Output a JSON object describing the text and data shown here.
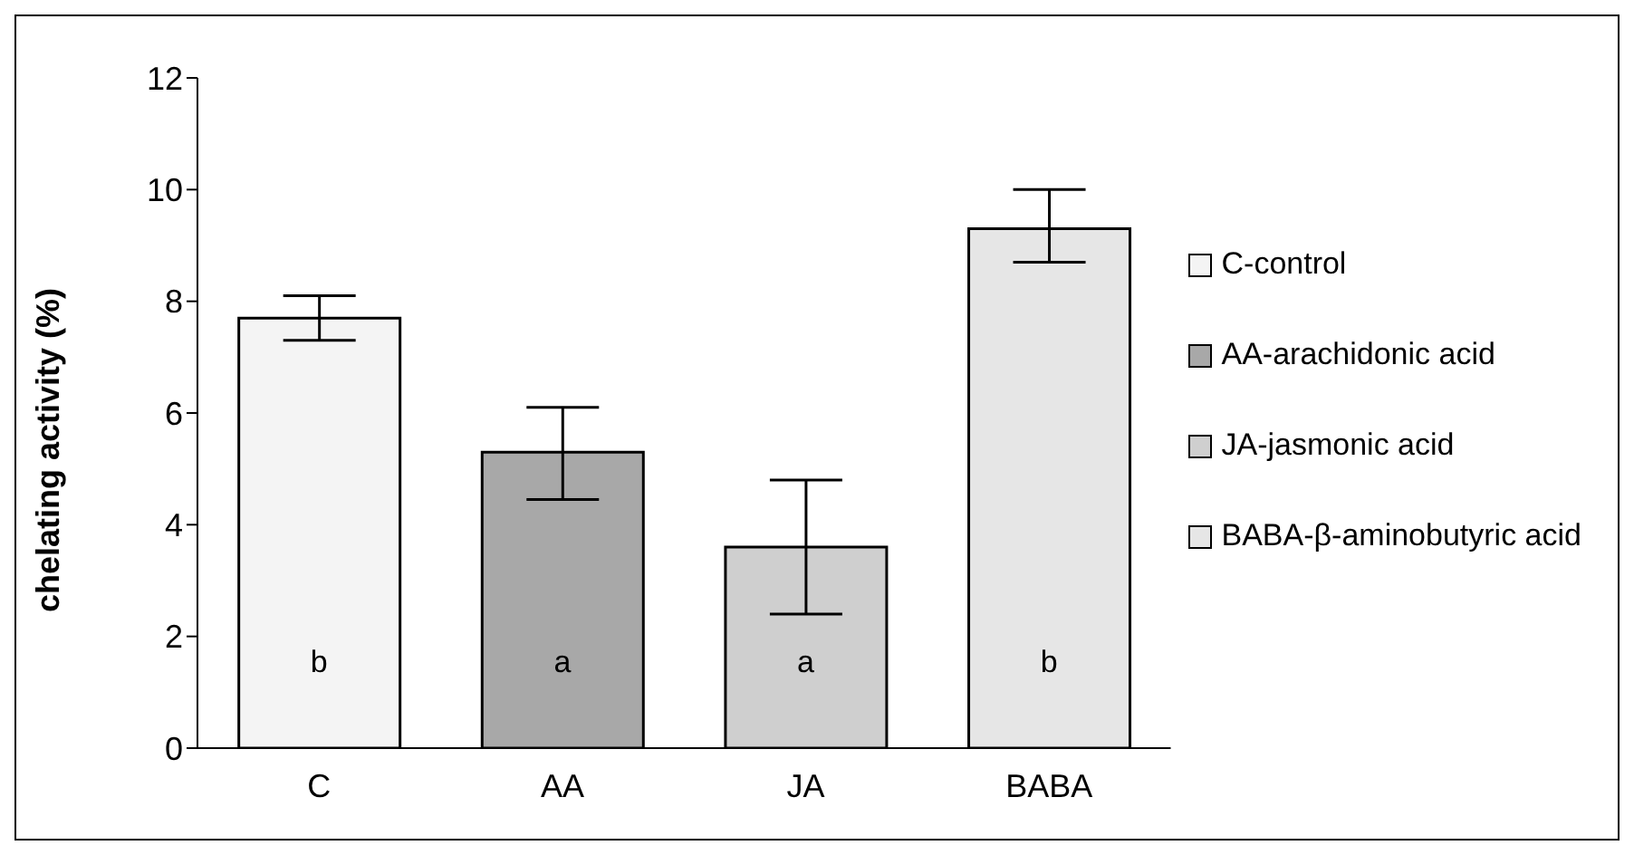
{
  "chart_data": {
    "type": "bar",
    "ylabel": "chelating activity (%)",
    "categories": [
      "C",
      "AA",
      "JA",
      "BABA"
    ],
    "stacked": true,
    "series": [
      {
        "name": "C-control",
        "color": "#f4f4f4",
        "values": [
          7.7,
          null,
          null,
          null
        ],
        "errors": [
          [
            7.3,
            8.1
          ],
          null,
          null,
          null
        ]
      },
      {
        "name": "AA-arachidonic acid",
        "color": "#a8a8a8",
        "values": [
          null,
          5.3,
          null,
          null
        ],
        "errors": [
          null,
          [
            4.45,
            6.1
          ],
          null,
          null
        ]
      },
      {
        "name": "JA-jasmonic acid",
        "color": "#cfcfcf",
        "values": [
          null,
          null,
          3.6,
          null
        ],
        "errors": [
          null,
          null,
          [
            2.4,
            4.8
          ],
          null
        ]
      },
      {
        "name": "BABA-β-aminobutyric acid",
        "color": "#e6e6e6",
        "values": [
          null,
          null,
          null,
          9.3
        ],
        "errors": [
          null,
          null,
          null,
          [
            8.7,
            10
          ]
        ]
      }
    ],
    "ylim": [
      0,
      12
    ],
    "yticks": [
      0,
      2,
      4,
      6,
      8,
      10,
      12
    ],
    "grid": false,
    "legend": "right",
    "annotations": [
      "b",
      "a",
      "a",
      "b"
    ]
  }
}
